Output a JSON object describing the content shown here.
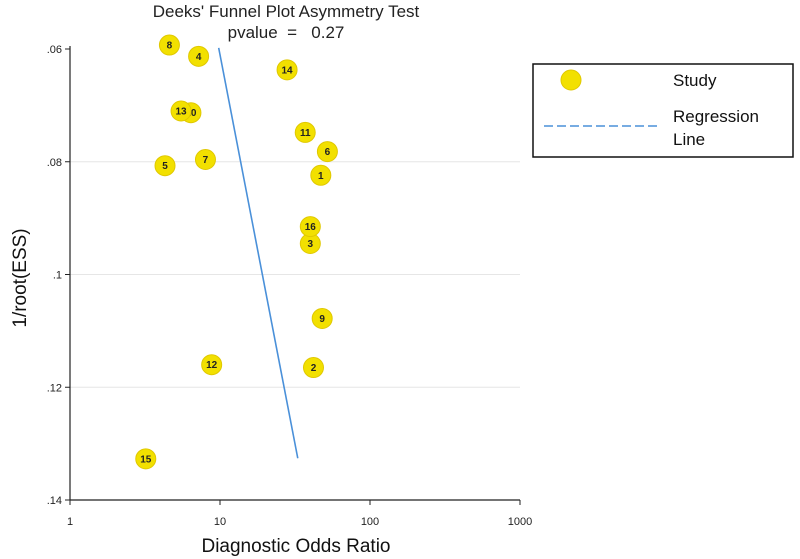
{
  "chart_data": {
    "type": "scatter",
    "title": "Deeks' Funnel Plot Asymmetry Test",
    "subtitle": "pvalue  =   0.27",
    "xlabel": "Diagnostic Odds Ratio",
    "ylabel": "1/root(ESS)",
    "x_scale": "log",
    "y_reversed": true,
    "xlim": [
      1,
      1000
    ],
    "ylim": [
      0.06,
      0.14
    ],
    "xticks": [
      1,
      10,
      100,
      1000
    ],
    "xtick_labels": [
      "1",
      "10",
      "100",
      "1000"
    ],
    "yticks": [
      0.06,
      0.08,
      0.1,
      0.12,
      0.14
    ],
    "ytick_labels": [
      ".06",
      ".08",
      ".1",
      ".12",
      ".14"
    ],
    "grid": "horizontal",
    "legend": {
      "placement": "right",
      "items": [
        {
          "label": "Study",
          "kind": "marker",
          "color": "#f2e000"
        },
        {
          "label": "Regression",
          "label_line2": "Line",
          "kind": "dashed-line",
          "color": "#4a90d9"
        }
      ]
    },
    "marker_color": "#f2e000",
    "line_color": "#4a90d9",
    "points": [
      {
        "label": "1",
        "x": 47,
        "y": 0.0824
      },
      {
        "label": "2",
        "x": 42,
        "y": 0.1165
      },
      {
        "label": "3",
        "x": 40,
        "y": 0.0945
      },
      {
        "label": "4",
        "x": 7.2,
        "y": 0.0613
      },
      {
        "label": "5",
        "x": 4.3,
        "y": 0.0807
      },
      {
        "label": "6",
        "x": 52,
        "y": 0.0782
      },
      {
        "label": "7",
        "x": 8.0,
        "y": 0.0796
      },
      {
        "label": "8",
        "x": 4.6,
        "y": 0.0593
      },
      {
        "label": "9",
        "x": 48,
        "y": 0.1078
      },
      {
        "label": "10",
        "x": 6.4,
        "y": 0.0713
      },
      {
        "label": "11",
        "x": 37,
        "y": 0.0748
      },
      {
        "label": "12",
        "x": 8.8,
        "y": 0.116
      },
      {
        "label": "13",
        "x": 5.5,
        "y": 0.071
      },
      {
        "label": "14",
        "x": 28,
        "y": 0.0637
      },
      {
        "label": "15",
        "x": 3.2,
        "y": 0.1327
      },
      {
        "label": "16",
        "x": 40,
        "y": 0.0915
      }
    ],
    "regression_line": {
      "x": [
        9.8,
        33
      ],
      "y": [
        0.0598,
        0.1326
      ]
    }
  }
}
